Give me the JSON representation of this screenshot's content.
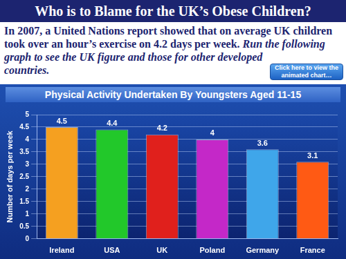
{
  "header": {
    "title": "Who is to Blame for the UK’s Obese Children?"
  },
  "intro": {
    "text": "In 2007, a United Nations report showed that on average UK children took over an hour’s exercise on 4.2 days per week.",
    "emphasis": "Run the following graph to see the UK figure and those for other developed countries."
  },
  "button": {
    "label": "Click here to view the animated chart…"
  },
  "chart_data": {
    "type": "bar",
    "title": "Physical Activity Undertaken By Youngsters Aged 11-15",
    "y_label": "Number of days per week",
    "categories": [
      "Ireland",
      "USA",
      "UK",
      "Poland",
      "Germany",
      "France"
    ],
    "values": [
      4.5,
      4.4,
      4.2,
      4,
      3.6,
      3.1
    ],
    "colors": [
      "#f5a020",
      "#22c82a",
      "#e0201c",
      "#c428c8",
      "#3fa6ea",
      "#ff5a14"
    ],
    "ylim": [
      0,
      5
    ],
    "yticks": [
      0,
      0.5,
      1,
      1.5,
      2,
      2.5,
      3,
      3.5,
      4,
      4.5,
      5
    ],
    "grid": true,
    "data_labels": true
  }
}
